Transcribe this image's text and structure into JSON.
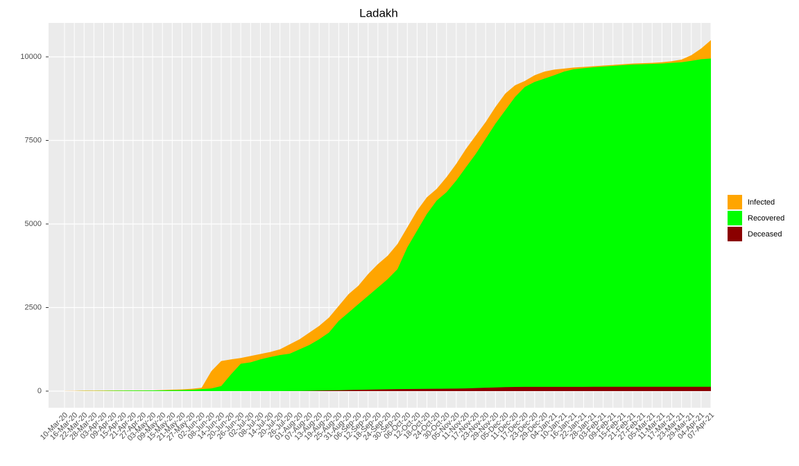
{
  "chart_data": {
    "type": "area",
    "title": "Ladakh",
    "categories": [
      "10-Mar-20",
      "16-Mar-20",
      "22-Mar-20",
      "28-Mar-20",
      "03-Apr-20",
      "09-Apr-20",
      "15-Apr-20",
      "21-Apr-20",
      "27-Apr-20",
      "03-May-20",
      "09-May-20",
      "15-May-20",
      "21-May-20",
      "27-May-20",
      "02-Jun-20",
      "08-Jun-20",
      "14-Jun-20",
      "20-Jun-20",
      "26-Jun-20",
      "02-Jul-20",
      "08-Jul-20",
      "14-Jul-20",
      "20-Jul-20",
      "26-Jul-20",
      "01-Aug-20",
      "07-Aug-20",
      "13-Aug-20",
      "19-Aug-20",
      "25-Aug-20",
      "31-Aug-20",
      "06-Sep-20",
      "12-Sep-20",
      "18-Sep-20",
      "24-Sep-20",
      "30-Sep-20",
      "06-Oct-20",
      "12-Oct-20",
      "18-Oct-20",
      "24-Oct-20",
      "30-Oct-20",
      "05-Nov-20",
      "11-Nov-20",
      "17-Nov-20",
      "23-Nov-20",
      "29-Nov-20",
      "05-Dec-20",
      "11-Dec-20",
      "17-Dec-20",
      "23-Dec-20",
      "29-Dec-20",
      "04-Jan-21",
      "10-Jan-21",
      "16-Jan-21",
      "22-Jan-21",
      "28-Jan-21",
      "03-Feb-21",
      "09-Feb-21",
      "15-Feb-21",
      "21-Feb-21",
      "27-Feb-21",
      "05-Mar-21",
      "11-Mar-21",
      "17-Mar-21",
      "23-Mar-21",
      "29-Mar-21",
      "04-Apr-21",
      "07-Apr-21"
    ],
    "series": [
      {
        "name": "Infected",
        "color": "#ffa500",
        "values": [
          3,
          6,
          13,
          13,
          15,
          17,
          18,
          18,
          20,
          22,
          30,
          43,
          52,
          70,
          100,
          600,
          900,
          950,
          990,
          1050,
          1110,
          1170,
          1250,
          1400,
          1550,
          1750,
          1950,
          2200,
          2550,
          2900,
          3150,
          3500,
          3800,
          4050,
          4400,
          4900,
          5400,
          5800,
          6050,
          6400,
          6800,
          7250,
          7650,
          8050,
          8500,
          8900,
          9150,
          9280,
          9450,
          9560,
          9620,
          9650,
          9680,
          9700,
          9720,
          9740,
          9760,
          9780,
          9800,
          9810,
          9820,
          9840,
          9870,
          9920,
          10050,
          10250,
          10500
        ]
      },
      {
        "name": "Recovered",
        "color": "#00ff00",
        "values": [
          0,
          0,
          3,
          3,
          4,
          10,
          14,
          15,
          16,
          17,
          20,
          25,
          30,
          40,
          60,
          80,
          150,
          500,
          820,
          860,
          950,
          1020,
          1080,
          1120,
          1250,
          1380,
          1550,
          1750,
          2100,
          2350,
          2600,
          2850,
          3100,
          3350,
          3650,
          4300,
          4800,
          5300,
          5700,
          5950,
          6300,
          6700,
          7100,
          7550,
          8000,
          8400,
          8800,
          9100,
          9250,
          9350,
          9450,
          9560,
          9630,
          9660,
          9690,
          9710,
          9730,
          9750,
          9770,
          9780,
          9790,
          9800,
          9820,
          9840,
          9880,
          9930,
          9950
        ]
      },
      {
        "name": "Deceased",
        "color": "#8b0000",
        "values": [
          0,
          0,
          0,
          0,
          0,
          0,
          0,
          0,
          0,
          0,
          0,
          0,
          0,
          0,
          0,
          1,
          1,
          1,
          1,
          1,
          1,
          1,
          1,
          2,
          3,
          8,
          15,
          20,
          25,
          35,
          40,
          45,
          50,
          55,
          60,
          62,
          65,
          67,
          70,
          72,
          75,
          80,
          90,
          100,
          110,
          120,
          125,
          127,
          127,
          128,
          128,
          128,
          128,
          128,
          129,
          129,
          129,
          129,
          129,
          129,
          130,
          130,
          130,
          130,
          130,
          130,
          130
        ]
      }
    ],
    "ylim": [
      0,
      10500
    ],
    "yticks": [
      0,
      2500,
      5000,
      7500,
      10000
    ],
    "grid": true
  }
}
